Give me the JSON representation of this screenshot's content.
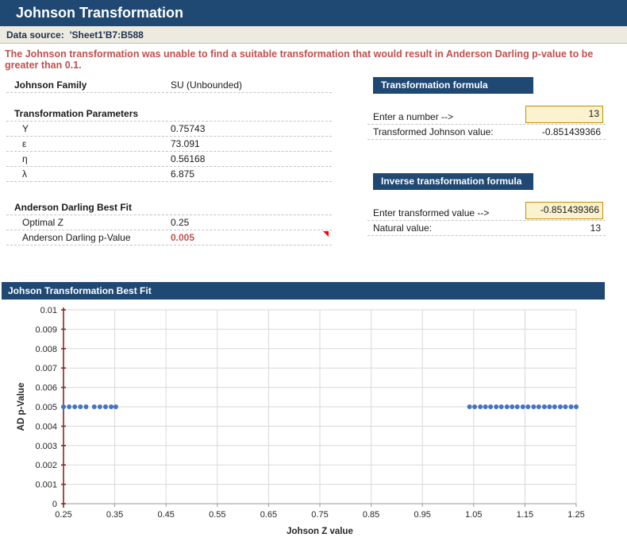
{
  "header": {
    "title": "Johnson Transformation"
  },
  "data_source": {
    "label": "Data source:",
    "value": "'Sheet1'B7:B588"
  },
  "warning": "The Johnson transformation was unable to find a suitable transformation that would result in Anderson Darling p-value to be greater than 0.1.",
  "summary": {
    "family_label": "Johnson Family",
    "family_value": "SU (Unbounded)",
    "params_header": "Transformation Parameters",
    "params": [
      {
        "symbol": "Υ",
        "value": "0.75743"
      },
      {
        "symbol": "ε",
        "value": "73.091"
      },
      {
        "symbol": "η",
        "value": "0.56168"
      },
      {
        "symbol": "λ",
        "value": "6.875"
      }
    ],
    "ad_header": "Anderson Darling Best Fit",
    "optimal_z_label": "Optimal Z",
    "optimal_z_value": "0.25",
    "pvalue_label": "Anderson Darling p-Value",
    "pvalue_value": "0.005"
  },
  "transform_box": {
    "title": "Transformation formula",
    "input_label": "Enter a number -->",
    "input_value": "13",
    "output_label": "Transformed Johnson value:",
    "output_value": "-0.851439366"
  },
  "inverse_box": {
    "title": "Inverse transformation formula",
    "input_label": "Enter transformed value -->",
    "input_value": "-0.851439366",
    "output_label": "Natural value:",
    "output_value": "13"
  },
  "chart_section": {
    "title": "Johson Transformation Best Fit"
  },
  "colors": {
    "navy": "#1F4873",
    "beige": "#EDEBE0",
    "warning_red": "#C0504D",
    "input_fill": "#FCF2CF",
    "input_border": "#BF9000",
    "marker_blue": "#4472C4",
    "y_axis_maroon": "#8E2323",
    "gridline": "#D9D9D9"
  },
  "chart_data": {
    "type": "scatter",
    "title": "Johson Transformation Best Fit",
    "xlabel": "Johson Z value",
    "ylabel": "AD p-Value",
    "xlim": [
      0.25,
      1.25
    ],
    "ylim": [
      0,
      0.01
    ],
    "x_tick_step": 0.1,
    "y_tick_step": 0.001,
    "x_tick_labels": [
      "0.25",
      "0.35",
      "0.45",
      "0.55",
      "0.65",
      "0.75",
      "0.85",
      "0.95",
      "1.05",
      "1.15",
      "1.25"
    ],
    "y_tick_labels": [
      "0",
      "0.001",
      "0.002",
      "0.003",
      "0.004",
      "0.005",
      "0.006",
      "0.007",
      "0.008",
      "0.009",
      "0.01"
    ],
    "grid": true,
    "legend": "none",
    "marker_color": "#4472C4",
    "y_axis_color": "#8E2323",
    "points": [
      {
        "x": 0.25,
        "y": 0.005
      },
      {
        "x": 0.261,
        "y": 0.005
      },
      {
        "x": 0.272,
        "y": 0.005
      },
      {
        "x": 0.283,
        "y": 0.005
      },
      {
        "x": 0.294,
        "y": 0.005
      },
      {
        "x": 0.31,
        "y": 0.005
      },
      {
        "x": 0.321,
        "y": 0.005
      },
      {
        "x": 0.332,
        "y": 0.005
      },
      {
        "x": 0.343,
        "y": 0.005
      },
      {
        "x": 0.352,
        "y": 0.005
      },
      {
        "x": 1.042,
        "y": 0.005
      },
      {
        "x": 1.052,
        "y": 0.005
      },
      {
        "x": 1.063,
        "y": 0.005
      },
      {
        "x": 1.073,
        "y": 0.005
      },
      {
        "x": 1.083,
        "y": 0.005
      },
      {
        "x": 1.094,
        "y": 0.005
      },
      {
        "x": 1.104,
        "y": 0.005
      },
      {
        "x": 1.115,
        "y": 0.005
      },
      {
        "x": 1.125,
        "y": 0.005
      },
      {
        "x": 1.135,
        "y": 0.005
      },
      {
        "x": 1.146,
        "y": 0.005
      },
      {
        "x": 1.156,
        "y": 0.005
      },
      {
        "x": 1.167,
        "y": 0.005
      },
      {
        "x": 1.177,
        "y": 0.005
      },
      {
        "x": 1.188,
        "y": 0.005
      },
      {
        "x": 1.198,
        "y": 0.005
      },
      {
        "x": 1.208,
        "y": 0.005
      },
      {
        "x": 1.219,
        "y": 0.005
      },
      {
        "x": 1.229,
        "y": 0.005
      },
      {
        "x": 1.24,
        "y": 0.005
      },
      {
        "x": 1.25,
        "y": 0.005
      }
    ]
  }
}
